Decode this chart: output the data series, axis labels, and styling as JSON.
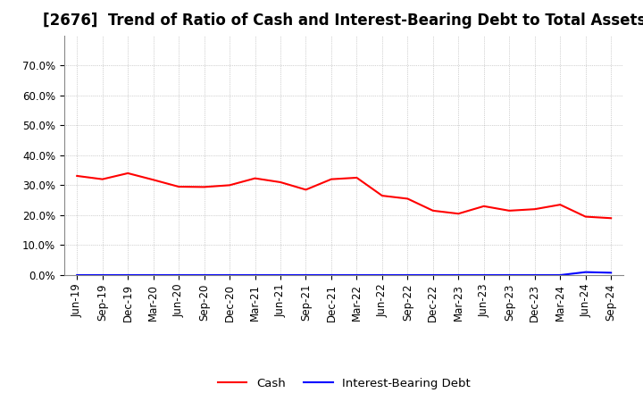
{
  "title": "[2676]  Trend of Ratio of Cash and Interest-Bearing Debt to Total Assets",
  "x_labels": [
    "Jun-19",
    "Sep-19",
    "Dec-19",
    "Mar-20",
    "Jun-20",
    "Sep-20",
    "Dec-20",
    "Mar-21",
    "Jun-21",
    "Sep-21",
    "Dec-21",
    "Mar-22",
    "Jun-22",
    "Sep-22",
    "Dec-22",
    "Mar-23",
    "Jun-23",
    "Sep-23",
    "Dec-23",
    "Mar-24",
    "Jun-24",
    "Sep-24"
  ],
  "cash": [
    0.331,
    0.32,
    0.34,
    0.318,
    0.295,
    0.294,
    0.3,
    0.323,
    0.31,
    0.285,
    0.32,
    0.325,
    0.265,
    0.255,
    0.215,
    0.205,
    0.23,
    0.215,
    0.22,
    0.235,
    0.195,
    0.19
  ],
  "interest_bearing_debt": [
    0.0,
    0.0,
    0.0,
    0.0,
    0.0,
    0.0,
    0.0,
    0.0,
    0.0,
    0.0,
    0.0,
    0.0,
    0.0,
    0.0,
    0.0,
    0.0,
    0.0,
    0.0,
    0.0,
    0.0,
    0.01,
    0.008
  ],
  "cash_color": "#FF0000",
  "debt_color": "#0000FF",
  "background_color": "#FFFFFF",
  "plot_bg_color": "#FFFFFF",
  "grid_color": "#AAAAAA",
  "ylim": [
    0.0,
    0.8
  ],
  "yticks": [
    0.0,
    0.1,
    0.2,
    0.3,
    0.4,
    0.5,
    0.6,
    0.7
  ],
  "legend_cash": "Cash",
  "legend_debt": "Interest-Bearing Debt",
  "title_fontsize": 12,
  "axis_fontsize": 8.5
}
